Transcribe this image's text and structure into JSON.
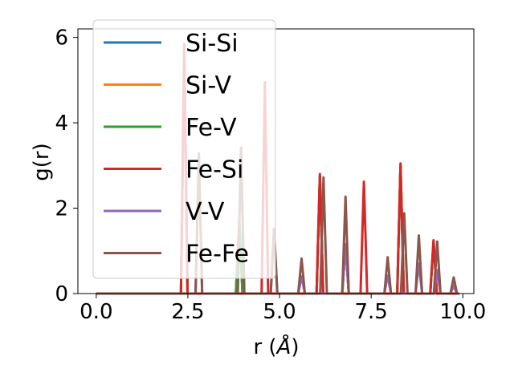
{
  "chart_data": {
    "type": "line",
    "xlabel_text": "r (",
    "xlabel_unit": "Å",
    "xlabel_close": ")",
    "ylabel": "g(r)",
    "xlim": [
      -0.5,
      10.3
    ],
    "ylim": [
      0,
      6.2
    ],
    "xticks": [
      0.0,
      2.5,
      5.0,
      7.5,
      10.0
    ],
    "xtick_labels": [
      "0.0",
      "2.5",
      "5.0",
      "7.5",
      "10.0"
    ],
    "yticks": [
      0,
      2,
      4,
      6
    ],
    "ytick_labels": [
      "0",
      "2",
      "4",
      "6"
    ],
    "grid": false,
    "legend_position": "upper-left",
    "series": [
      {
        "name": "Si-Si",
        "color": "#1f77b4",
        "peaks": [
          [
            2.4,
            5.8
          ],
          [
            3.9,
            1.7
          ],
          [
            6.1,
            2.75
          ],
          [
            6.8,
            1.15
          ],
          [
            8.3,
            3.0
          ],
          [
            9.2,
            1.2
          ]
        ]
      },
      {
        "name": "Si-V",
        "color": "#ff7f0e",
        "peaks": [
          [
            2.4,
            5.8
          ],
          [
            3.9,
            1.7
          ],
          [
            6.1,
            2.75
          ],
          [
            6.8,
            1.15
          ],
          [
            8.3,
            3.0
          ],
          [
            9.2,
            1.2
          ]
        ]
      },
      {
        "name": "Fe-V",
        "color": "#2ca02c",
        "peaks": [
          [
            2.4,
            5.8
          ],
          [
            3.9,
            1.7
          ],
          [
            6.1,
            2.75
          ],
          [
            6.8,
            1.15
          ],
          [
            8.3,
            3.0
          ],
          [
            9.2,
            1.2
          ]
        ]
      },
      {
        "name": "Fe-Si",
        "color": "#d62728",
        "peaks": [
          [
            2.4,
            5.85
          ],
          [
            4.6,
            4.95
          ],
          [
            6.1,
            2.8
          ],
          [
            7.3,
            2.62
          ],
          [
            8.3,
            3.05
          ],
          [
            9.2,
            1.25
          ]
        ]
      },
      {
        "name": "V-V",
        "color": "#9467bd",
        "peaks": [
          [
            2.8,
            3.25
          ],
          [
            3.95,
            3.4
          ],
          [
            4.85,
            1.5
          ],
          [
            5.6,
            0.4
          ],
          [
            6.8,
            1.15
          ],
          [
            7.95,
            0.42
          ],
          [
            8.8,
            0.7
          ],
          [
            9.3,
            0.55
          ],
          [
            9.75,
            0.18
          ]
        ]
      },
      {
        "name": "Fe-Fe",
        "color": "#8c564b",
        "peaks": [
          [
            2.8,
            3.28
          ],
          [
            3.95,
            3.42
          ],
          [
            4.85,
            1.52
          ],
          [
            5.6,
            0.82
          ],
          [
            6.2,
            2.72
          ],
          [
            6.8,
            2.27
          ],
          [
            7.95,
            0.85
          ],
          [
            8.4,
            1.88
          ],
          [
            8.8,
            1.36
          ],
          [
            9.3,
            1.22
          ],
          [
            9.75,
            0.38
          ]
        ]
      }
    ]
  }
}
